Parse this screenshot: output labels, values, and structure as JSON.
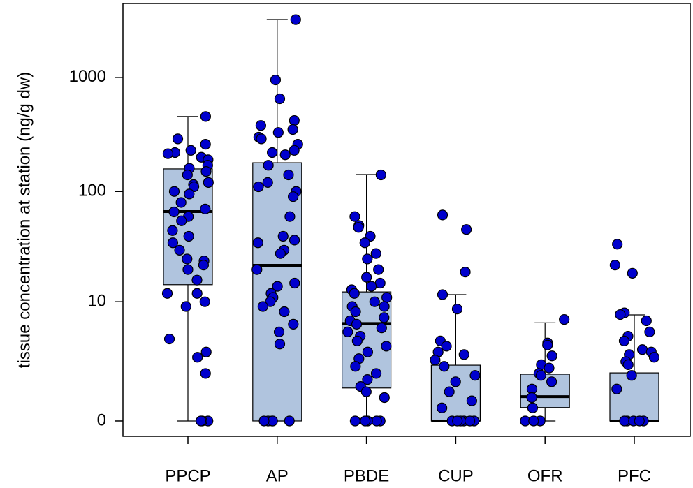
{
  "chart_data": {
    "type": "box",
    "ylabel": "tissue concentration at station (ng/g dw)",
    "yscale": "log1p",
    "ylim": [
      -0.266,
      4426
    ],
    "yticks": [
      0,
      10,
      100,
      1000
    ],
    "box_color": "#b0c4de",
    "point_color": "#0000cd",
    "categories": [
      "PPCP",
      "AP",
      "PBDE",
      "CUP",
      "OFR",
      "PFC"
    ],
    "boxes": [
      {
        "whisker_low": 0,
        "q1": 14.5,
        "median": 66.5,
        "q3": 158,
        "whisker_high": 455,
        "points": [
          455,
          290,
          260,
          230,
          220,
          215,
          200,
          190,
          170,
          160,
          150,
          140,
          120,
          115,
          110,
          100,
          95,
          80,
          70,
          66,
          60,
          55,
          45,
          40,
          35,
          30,
          25,
          24,
          22,
          20,
          16,
          12,
          12,
          10,
          9,
          4.2,
          3,
          2.6,
          1.6,
          0,
          0,
          0
        ]
      },
      {
        "whisker_low": 0,
        "q1": 0,
        "median": 21.9,
        "q3": 179,
        "whisker_high": 3206,
        "points": [
          3200,
          950,
          650,
          420,
          380,
          350,
          330,
          300,
          290,
          260,
          230,
          220,
          210,
          170,
          140,
          120,
          110,
          100,
          90,
          60,
          40,
          37,
          35,
          30,
          28,
          20,
          15,
          14,
          12,
          11,
          10,
          9,
          8,
          6,
          5,
          3.7,
          0,
          0,
          0,
          0,
          0
        ]
      },
      {
        "whisker_low": 0,
        "q1": 0.94,
        "median": 6.1,
        "q3": 12.4,
        "whisker_high": 141,
        "points": [
          140,
          60,
          50,
          48,
          40,
          35,
          28,
          25,
          20,
          17,
          15,
          14,
          13,
          12,
          11,
          10,
          9,
          9,
          8,
          7,
          6.5,
          6,
          5.5,
          5,
          4.5,
          4,
          3.5,
          3,
          2.5,
          2,
          1.6,
          1.3,
          1,
          0.8,
          0.6,
          0,
          0,
          0,
          0,
          0
        ]
      },
      {
        "whisker_low": 0,
        "q1": 0,
        "median": 0,
        "q3": 2.07,
        "whisker_high": 11.7,
        "points": [
          62,
          46,
          19,
          11.7,
          8.5,
          4,
          3.5,
          3,
          2.8,
          2.4,
          2,
          1.5,
          1.2,
          0.8,
          0.5,
          0.3,
          0,
          0,
          0,
          0,
          0,
          0
        ]
      },
      {
        "whisker_low": 0,
        "q1": 0.31,
        "median": 0.63,
        "q3": 1.56,
        "whisker_high": 6.2,
        "points": [
          6.7,
          3.8,
          3.6,
          2.7,
          2.1,
          1.9,
          1.6,
          1.5,
          1.2,
          0.9,
          0.6,
          0.3,
          0,
          0,
          0
        ]
      },
      {
        "whisker_low": 0,
        "q1": 0,
        "median": 0,
        "q3": 1.63,
        "whisker_high": 7.45,
        "points": [
          34,
          22,
          18.5,
          7.8,
          7.5,
          6.5,
          5,
          4.5,
          4,
          3.2,
          3,
          2.8,
          2.6,
          2.3,
          2.1,
          1.5,
          0.9,
          0,
          0,
          0,
          0,
          0
        ]
      }
    ]
  }
}
